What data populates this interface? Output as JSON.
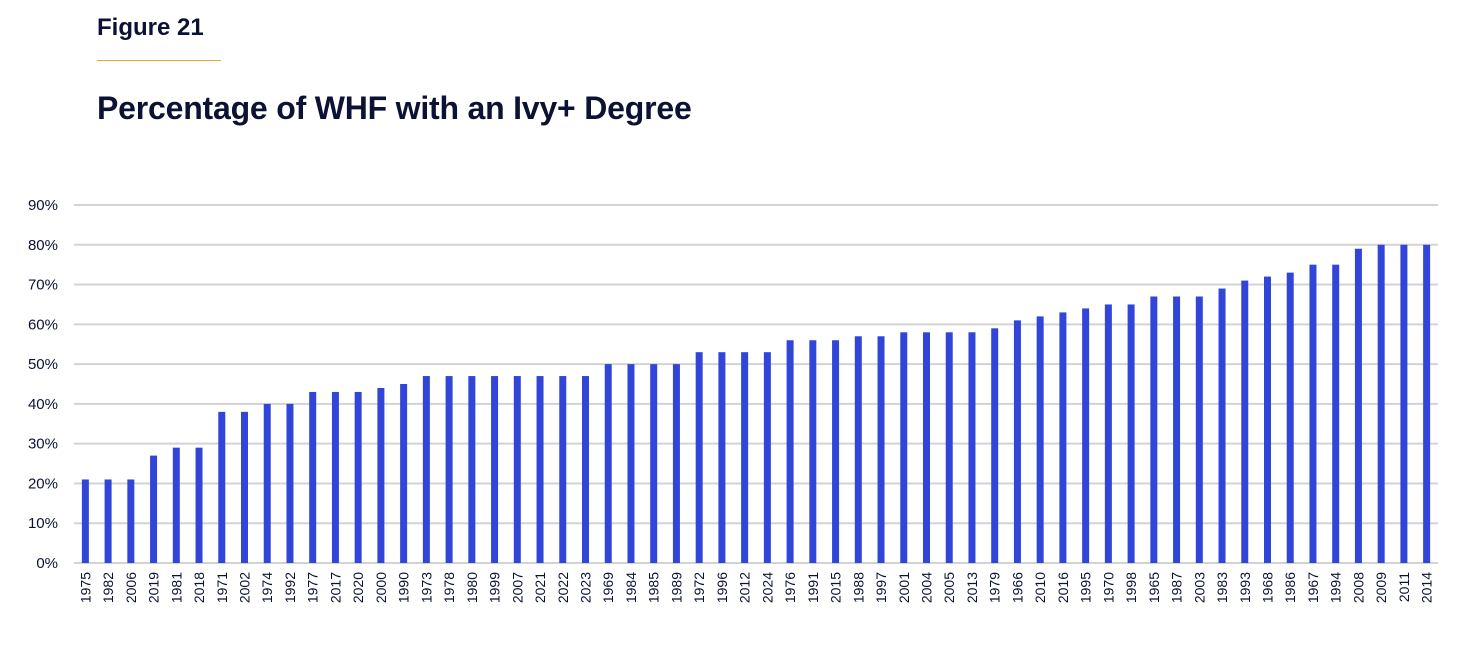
{
  "header": {
    "figure_label": "Figure 21",
    "title": "Percentage of WHF with an Ivy+ Degree"
  },
  "colors": {
    "bar": "#3146d9",
    "grid": "#d3d3d3",
    "text": "#0b1233",
    "accent_rule": "#e8a33d"
  },
  "chart_data": {
    "type": "bar",
    "title": "Percentage of WHF with an Ivy+ Degree",
    "xlabel": "",
    "ylabel": "",
    "ylim": [
      0,
      90
    ],
    "yticks": [
      0,
      10,
      20,
      30,
      40,
      50,
      60,
      70,
      80,
      90
    ],
    "ytick_labels": [
      "0%",
      "10%",
      "20%",
      "30%",
      "40%",
      "50%",
      "60%",
      "70%",
      "80%",
      "90%"
    ],
    "grid": true,
    "categories": [
      "1975",
      "1982",
      "2006",
      "2019",
      "1981",
      "2018",
      "1971",
      "2002",
      "1974",
      "1992",
      "1977",
      "2017",
      "2020",
      "2000",
      "1990",
      "1973",
      "1978",
      "1980",
      "1999",
      "2007",
      "2021",
      "2022",
      "2023",
      "1969",
      "1984",
      "1985",
      "1989",
      "1972",
      "1996",
      "2012",
      "2024",
      "1976",
      "1991",
      "2015",
      "1988",
      "1997",
      "2001",
      "2004",
      "2005",
      "2013",
      "1979",
      "1966",
      "2010",
      "2016",
      "1995",
      "1970",
      "1998",
      "1965",
      "1987",
      "2003",
      "1983",
      "1993",
      "1968",
      "1986",
      "1967",
      "1994",
      "2008",
      "2009",
      "2011",
      "2014"
    ],
    "values": [
      21,
      21,
      21,
      27,
      29,
      29,
      38,
      38,
      40,
      40,
      43,
      43,
      43,
      44,
      45,
      47,
      47,
      47,
      47,
      47,
      47,
      47,
      47,
      50,
      50,
      50,
      50,
      53,
      53,
      53,
      53,
      56,
      56,
      56,
      57,
      57,
      58,
      58,
      58,
      58,
      59,
      61,
      62,
      63,
      64,
      65,
      65,
      67,
      67,
      67,
      69,
      71,
      72,
      73,
      75,
      75,
      79,
      80,
      80,
      80
    ]
  }
}
